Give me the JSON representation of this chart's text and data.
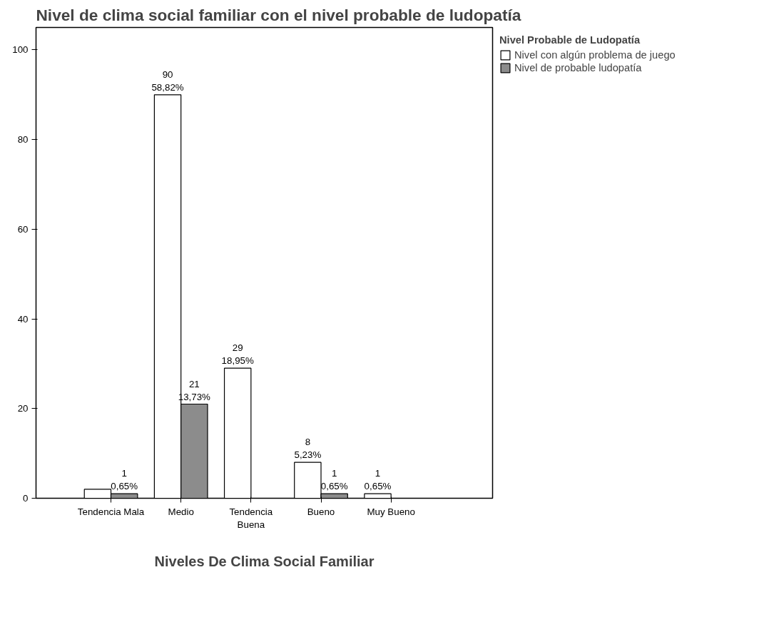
{
  "chart_data": {
    "type": "bar",
    "title": "Nivel de clima social familiar con el nivel probable de ludopatía",
    "xlabel": "Niveles De Clima Social Familiar",
    "legend_title": "Nivel Probable de Ludopatía",
    "categories": [
      "Tendencia Mala",
      "Medio",
      "Tendencia\nBuena",
      "Bueno",
      "Muy Bueno"
    ],
    "series": [
      {
        "name": "Nivel con algún problema de juego",
        "color": "#ffffff",
        "values": [
          2,
          90,
          29,
          8,
          1
        ],
        "value_labels": [
          null,
          "90\n58,82%",
          "29\n18,95%",
          "8\n5,23%",
          "1\n0,65%"
        ]
      },
      {
        "name": "Nivel de probable ludopatía",
        "color": "#8c8c8c",
        "values": [
          1,
          21,
          null,
          1,
          null
        ],
        "value_labels": [
          "1\n0,65%",
          "21\n13,73%",
          null,
          "1\n0,65%",
          null
        ]
      }
    ],
    "ylim": [
      0,
      105
    ],
    "yticks": [
      0,
      20,
      40,
      60,
      80,
      100
    ],
    "grid": false,
    "legend": "top right"
  }
}
